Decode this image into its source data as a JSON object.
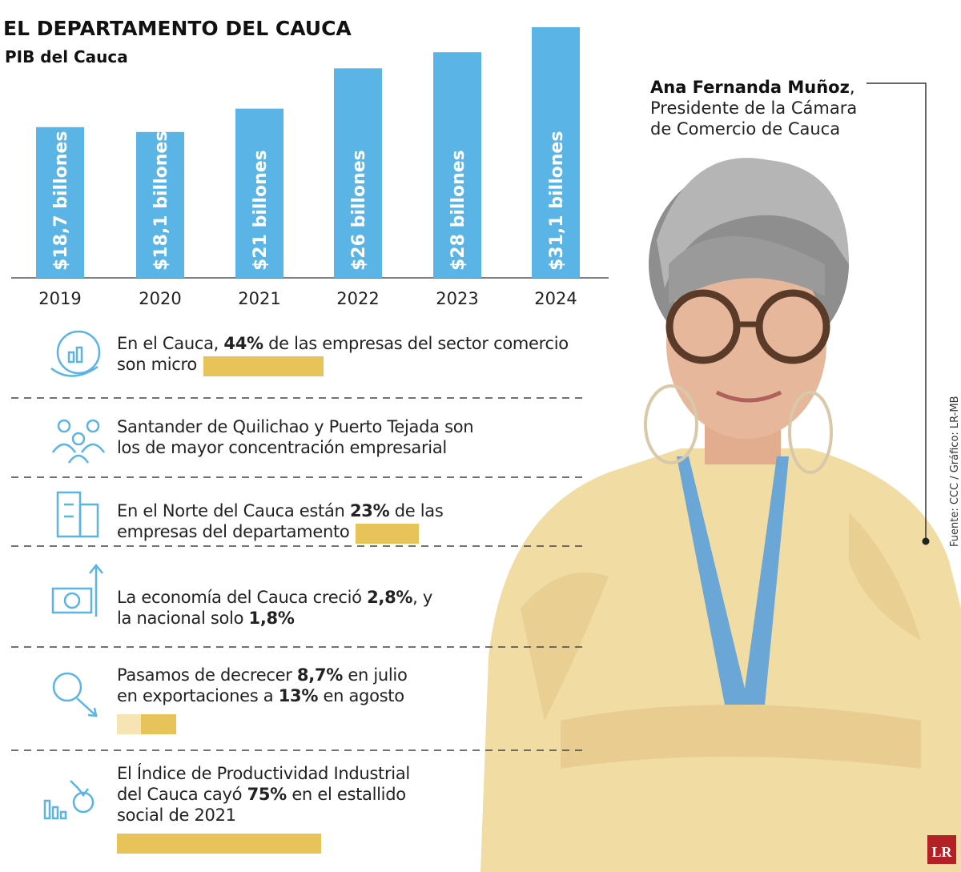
{
  "chart_data": {
    "type": "bar",
    "title": "EL DEPARTAMENTO DEL CAUCA",
    "subtitle": "PIB del Cauca",
    "categories": [
      "2019",
      "2020",
      "2021",
      "2022",
      "2023",
      "2024"
    ],
    "values": [
      18.7,
      18.1,
      21,
      26,
      28,
      31.1
    ],
    "value_labels": [
      "$18,7 billones",
      "$18,1 billones",
      "$21 billones",
      "$26 billones",
      "$28 billones",
      "$31,1 billones"
    ],
    "color": "#5ab4e5"
  },
  "facts": [
    {
      "lines": [
        [
          {
            "text": "En el Cauca, "
          },
          {
            "text": "44%",
            "bold": true
          },
          {
            "text": " de las empresas del sector comercio"
          }
        ],
        [
          {
            "text": "son micro"
          }
        ]
      ],
      "values": [
        44
      ],
      "colors": [
        "#e8c35a"
      ]
    },
    {
      "lines": [
        [
          {
            "text": "Santander de Quilichao y Puerto Tejada son"
          }
        ],
        [
          {
            "text": "los de mayor concentración empresarial"
          }
        ]
      ]
    },
    {
      "lines": [
        [
          {
            "text": "En el Norte del Cauca están "
          },
          {
            "text": "23%",
            "bold": true
          },
          {
            "text": " de las"
          }
        ],
        [
          {
            "text": "empresas del departamento"
          }
        ]
      ],
      "values": [
        23
      ],
      "colors": [
        "#e8c35a"
      ]
    },
    {
      "lines": [
        [
          {
            "text": "La economía del Cauca creció "
          },
          {
            "text": "2,8%",
            "bold": true
          },
          {
            "text": ", y"
          }
        ],
        [
          {
            "text": "la nacional solo "
          },
          {
            "text": "1,8%",
            "bold": true
          }
        ]
      ]
    },
    {
      "lines": [
        [
          {
            "text": "Pasamos de decrecer "
          },
          {
            "text": "8,7%",
            "bold": true
          },
          {
            "text": " en julio"
          }
        ],
        [
          {
            "text": "en exportaciones a "
          },
          {
            "text": "13%",
            "bold": true
          },
          {
            "text": " en agosto"
          }
        ]
      ],
      "values": [
        8.7,
        13
      ],
      "colors": [
        "#f6e4b4",
        "#e8c35a"
      ]
    },
    {
      "lines": [
        [
          {
            "text": "El Índice de Productividad Industrial"
          }
        ],
        [
          {
            "text": "del Cauca cayó "
          },
          {
            "text": "75%",
            "bold": true
          },
          {
            "text": " en el estallido"
          }
        ],
        [
          {
            "text": "social de 2021"
          }
        ]
      ],
      "values": [
        75
      ],
      "colors": [
        "#e8c35a"
      ]
    }
  ],
  "person": {
    "name": "Ana Fernanda Muñoz",
    "name_suffix": ",",
    "role_lines": [
      "Presidente de la Cámara",
      "de Comercio de Cauca"
    ]
  },
  "source": "Fuente: CCC / Gráfico: LR-MB",
  "logo": "LR"
}
